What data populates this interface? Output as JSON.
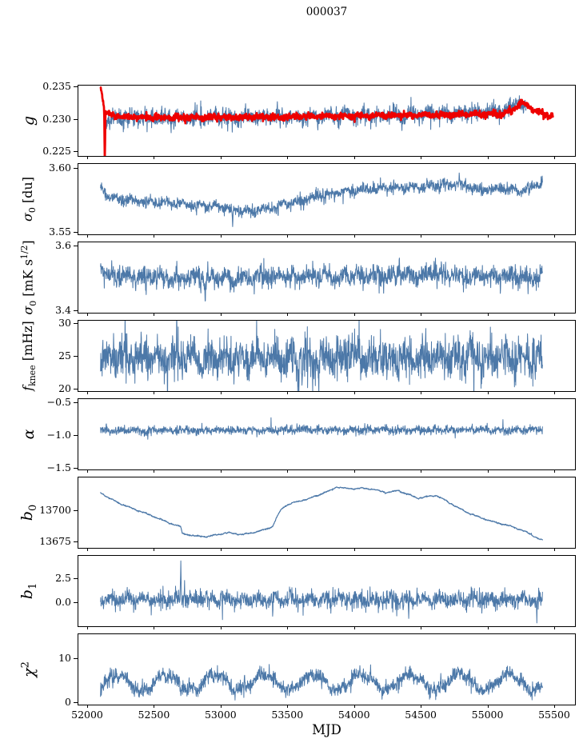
{
  "chart_data": {
    "type": "line",
    "title": "000037",
    "xlabel": "MJD",
    "grid": false,
    "legend": "none",
    "axis_color": "#000000",
    "xlim": [
      51934,
      55656
    ],
    "xticks": [
      52000,
      52500,
      53000,
      53500,
      54000,
      54500,
      55000,
      55500
    ],
    "xtick_labels": [
      "52000",
      "52500",
      "53000",
      "53500",
      "54000",
      "54500",
      "55000",
      "55500"
    ],
    "x_start": 52100,
    "x_end": 55412,
    "x_step": 2,
    "panels": [
      {
        "name": "g",
        "ylabel_html": "<i>g</i>",
        "ylabel_size": 19,
        "ylim": [
          0.2243,
          0.2351
        ],
        "yticks": [
          0.225,
          0.23,
          0.235
        ],
        "ytick_labels": [
          "0.225",
          "0.230",
          "0.235"
        ],
        "series": [
          {
            "name": "g-blue",
            "color": "#4c78a8",
            "width": 1.05,
            "seed": 11,
            "noise": 0.00062,
            "tail_p": 0.05,
            "tail_m": 2.1,
            "x_start": 52135,
            "x_end": 55290,
            "trend": [
              [
                52135,
                0.2297
              ],
              [
                52180,
                0.2301
              ],
              [
                52400,
                0.23015
              ],
              [
                52800,
                0.2301
              ],
              [
                53200,
                0.23025
              ],
              [
                53600,
                0.23035
              ],
              [
                54000,
                0.2305
              ],
              [
                54400,
                0.2306
              ],
              [
                54800,
                0.2308
              ],
              [
                55050,
                0.231
              ],
              [
                55150,
                0.2313
              ],
              [
                55230,
                0.2327
              ],
              [
                55290,
                0.2319
              ]
            ],
            "spikes": [
              [
                53055,
                -0.0015
              ],
              [
                53110,
                -0.0013
              ],
              [
                54200,
                -0.0014
              ],
              [
                54360,
                -0.0027
              ],
              [
                52960,
                0.0013
              ],
              [
                53930,
                0.0012
              ],
              [
                54870,
                0.0014
              ],
              [
                55000,
                0.0012
              ]
            ]
          },
          {
            "name": "g-red",
            "color": "#ee0000",
            "width": 2.7,
            "seed": 5,
            "noise": 0.00023,
            "x_start": 52102,
            "x_end": 55490,
            "trend": [
              [
                52102,
                0.2352
              ],
              [
                52112,
                0.2336
              ],
              [
                52126,
                0.2316
              ],
              [
                52148,
                0.2308
              ],
              [
                52210,
                0.2304
              ],
              [
                52400,
                0.23025
              ],
              [
                52700,
                0.23021
              ],
              [
                53100,
                0.23022
              ],
              [
                53500,
                0.23032
              ],
              [
                53900,
                0.23042
              ],
              [
                54300,
                0.23052
              ],
              [
                54700,
                0.23062
              ],
              [
                55000,
                0.2307
              ],
              [
                55120,
                0.2308
              ],
              [
                55180,
                0.2312
              ],
              [
                55250,
                0.2324
              ],
              [
                55310,
                0.232
              ],
              [
                55370,
                0.2311
              ],
              [
                55430,
                0.2306
              ],
              [
                55490,
                0.2304
              ]
            ],
            "spikes": [
              [
                52132,
                -0.0078
              ]
            ]
          }
        ]
      },
      {
        "name": "sigma0-du",
        "ylabel_html": "<i>&#963;</i><sub>0</sub> [du]",
        "ylabel_size": 16,
        "ylim": [
          3.548,
          3.603
        ],
        "yticks": [
          3.55,
          3.6
        ],
        "ytick_labels": [
          "3.55",
          "3.60"
        ],
        "series": [
          {
            "name": "sigma0-du-blue",
            "color": "#4c78a8",
            "width": 1.05,
            "seed": 21,
            "noise": 0.0021,
            "tail_p": 0.02,
            "tail_m": 1.8,
            "trend": [
              [
                52100,
                3.586
              ],
              [
                52140,
                3.578
              ],
              [
                52250,
                3.5755
              ],
              [
                52450,
                3.574
              ],
              [
                52700,
                3.5715
              ],
              [
                52950,
                3.57
              ],
              [
                53100,
                3.567
              ],
              [
                53250,
                3.566
              ],
              [
                53400,
                3.5695
              ],
              [
                53550,
                3.573
              ],
              [
                53700,
                3.577
              ],
              [
                53850,
                3.5805
              ],
              [
                54000,
                3.5825
              ],
              [
                54150,
                3.5835
              ],
              [
                54300,
                3.585
              ],
              [
                54500,
                3.585
              ],
              [
                54650,
                3.5865
              ],
              [
                54780,
                3.588
              ],
              [
                54950,
                3.5825
              ],
              [
                55100,
                3.5845
              ],
              [
                55250,
                3.582
              ],
              [
                55330,
                3.585
              ],
              [
                55412,
                3.589
              ]
            ],
            "spikes": [
              [
                53090,
                -0.012
              ],
              [
                52440,
                -0.006
              ],
              [
                53430,
                -0.007
              ]
            ]
          }
        ]
      },
      {
        "name": "sigma0-mk",
        "ylabel_html": "<i>&#963;</i><sub>0</sub> [mK s<sup>1/2</sup>]",
        "ylabel_size": 16,
        "ylim": [
          3.393,
          3.61
        ],
        "yticks": [
          3.4,
          3.6
        ],
        "ytick_labels": [
          "3.4",
          "3.6"
        ],
        "series": [
          {
            "name": "sigma0-mk-blue",
            "color": "#4c78a8",
            "width": 1.05,
            "seed": 31,
            "noise": 0.0155,
            "tail_p": 0.03,
            "tail_m": 1.6,
            "trend": [
              [
                52100,
                3.53
              ],
              [
                52160,
                3.508
              ],
              [
                52400,
                3.503
              ],
              [
                52800,
                3.5
              ],
              [
                53200,
                3.502
              ],
              [
                53700,
                3.506
              ],
              [
                54100,
                3.503
              ],
              [
                54600,
                3.509
              ],
              [
                54900,
                3.505
              ],
              [
                55200,
                3.503
              ],
              [
                55412,
                3.498
              ]
            ],
            "spikes": [
              [
                52440,
                -0.04
              ],
              [
                52885,
                -0.062
              ],
              [
                53100,
                -0.04
              ],
              [
                54144,
                0.04
              ],
              [
                54340,
                0.062
              ],
              [
                54600,
                0.035
              ]
            ]
          }
        ]
      },
      {
        "name": "fknee",
        "ylabel_html": "<i>f</i><sub>knee</sub> [mHz]",
        "ylabel_size": 16,
        "ylim": [
          19.6,
          30.4
        ],
        "yticks": [
          20,
          25,
          30
        ],
        "ytick_labels": [
          "20",
          "25",
          "30"
        ],
        "series": [
          {
            "name": "fknee-blue",
            "color": "#4c78a8",
            "width": 1.0,
            "seed": 41,
            "noise": 1.45,
            "tail_p": 0.05,
            "tail_m": 1.9,
            "trend": [
              [
                52100,
                25.0
              ],
              [
                52700,
                24.6
              ],
              [
                53500,
                24.5
              ],
              [
                54300,
                24.6
              ],
              [
                55412,
                24.6
              ]
            ],
            "spikes": [
              [
                53585,
                -5.5
              ],
              [
                52670,
                4.5
              ],
              [
                53960,
                4.2
              ],
              [
                54870,
                4.8
              ]
            ]
          }
        ]
      },
      {
        "name": "alpha",
        "ylabel_html": "<i>&#945;</i>",
        "ylabel_size": 19,
        "ylim": [
          -1.525,
          -0.45
        ],
        "yticks": [
          -0.5,
          -1.0,
          -1.5
        ],
        "ytick_labels": [
          "−0.5",
          "−1.0",
          "−1.5"
        ],
        "series": [
          {
            "name": "alpha-blue",
            "color": "#4c78a8",
            "width": 1.0,
            "seed": 51,
            "noise": 0.03,
            "tail_p": 0.03,
            "tail_m": 1.7,
            "trend": [
              [
                52100,
                -0.932
              ],
              [
                53000,
                -0.928
              ],
              [
                54000,
                -0.922
              ],
              [
                55412,
                -0.92
              ]
            ],
            "spikes": []
          }
        ]
      },
      {
        "name": "b0",
        "ylabel_html": "<i>b</i><sub>0</sub>",
        "ylabel_size": 19,
        "ylim": [
          13670,
          13726
        ],
        "yticks": [
          13675,
          13700
        ],
        "ytick_labels": [
          "13675",
          "13700"
        ],
        "series": [
          {
            "name": "b0-blue",
            "color": "#4c78a8",
            "width": 1.2,
            "seed": 61,
            "noise": 0.22,
            "lf": 2.5,
            "trend": [
              [
                52100,
                13714
              ],
              [
                52150,
                13710.5
              ],
              [
                52250,
                13705
              ],
              [
                52400,
                13699
              ],
              [
                52520,
                13694
              ],
              [
                52620,
                13689.5
              ],
              [
                52680,
                13687.5
              ],
              [
                52700,
                13687
              ],
              [
                52712,
                13681.5
              ],
              [
                52800,
                13679.5
              ],
              [
                52900,
                13679
              ],
              [
                53000,
                13681
              ],
              [
                53060,
                13682
              ],
              [
                53160,
                13680.5
              ],
              [
                53260,
                13682.5
              ],
              [
                53330,
                13684.5
              ],
              [
                53390,
                13687
              ],
              [
                53420,
                13694
              ],
              [
                53450,
                13700
              ],
              [
                53480,
                13703
              ],
              [
                53530,
                13705.5
              ],
              [
                53600,
                13707.5
              ],
              [
                53660,
                13709
              ],
              [
                53720,
                13711.5
              ],
              [
                53780,
                13714
              ],
              [
                53830,
                13716
              ],
              [
                53870,
                13718.5
              ],
              [
                53930,
                13717.5
              ],
              [
                54000,
                13717
              ],
              [
                54060,
                13717.5
              ],
              [
                54150,
                13716.5
              ],
              [
                54240,
                13714
              ],
              [
                54330,
                13715.5
              ],
              [
                54420,
                13712
              ],
              [
                54480,
                13709.5
              ],
              [
                54560,
                13711
              ],
              [
                54620,
                13711.5
              ],
              [
                54680,
                13708
              ],
              [
                54730,
                13705
              ],
              [
                54780,
                13702
              ],
              [
                54850,
                13698
              ],
              [
                54950,
                13694
              ],
              [
                55050,
                13690.5
              ],
              [
                55150,
                13688
              ],
              [
                55250,
                13684.5
              ],
              [
                55320,
                13681
              ],
              [
                55380,
                13677.5
              ],
              [
                55412,
                13676
              ]
            ],
            "spikes": []
          }
        ]
      },
      {
        "name": "b1",
        "ylabel_html": "<i>b</i><sub>1</sub>",
        "ylabel_size": 19,
        "ylim": [
          -2.5,
          4.83
        ],
        "yticks": [
          0.0,
          2.5
        ],
        "ytick_labels": [
          "0.0",
          "2.5"
        ],
        "series": [
          {
            "name": "b1-blue",
            "color": "#4c78a8",
            "width": 1.0,
            "seed": 71,
            "noise": 0.42,
            "tail_p": 0.05,
            "tail_m": 1.8,
            "trend": [
              [
                52100,
                0.3
              ],
              [
                53500,
                0.27
              ],
              [
                55412,
                0.25
              ]
            ],
            "spikes": [
              [
                52702,
                3.9
              ],
              [
                53390,
                -1.2
              ],
              [
                54410,
                -1.5
              ],
              [
                55370,
                -2.0
              ]
            ]
          }
        ]
      },
      {
        "name": "chi2",
        "ylabel_html": "<i>&#967;</i><sup>2</sup>",
        "ylabel_size": 19,
        "ylim": [
          -0.55,
          15.45
        ],
        "yticks": [
          0,
          10
        ],
        "ytick_labels": [
          "0",
          "10"
        ],
        "series": [
          {
            "name": "chi2-blue",
            "color": "#4c78a8",
            "width": 1.0,
            "seed": 81,
            "noise": 0.8,
            "tail_p": 0.03,
            "tail_m": 1.6,
            "min": 0.3,
            "osc": {
              "amp": 1.8,
              "period": 366,
              "phase": 52136
            },
            "trend": [
              [
                52100,
                4.3
              ],
              [
                53000,
                4.5
              ],
              [
                54000,
                4.6
              ],
              [
                55412,
                4.5
              ]
            ],
            "spikes": [
              [
                53180,
                2.5
              ],
              [
                54650,
                2.2
              ]
            ]
          }
        ]
      }
    ]
  }
}
